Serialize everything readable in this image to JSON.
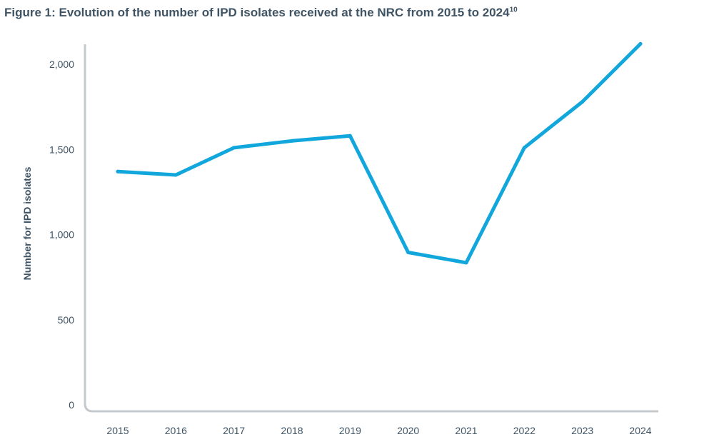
{
  "figure": {
    "title": "Figure 1: Evolution of the number of IPD isolates received at the NRC from 2015 to 2024",
    "title_sup": "10"
  },
  "colors": {
    "line": "#12a7dc",
    "axis": "#c4c9cd",
    "text": "#3f5465"
  },
  "chart_data": {
    "type": "line",
    "title": "Figure 1: Evolution of the number of IPD isolates received at the NRC from 2015 to 2024",
    "xlabel": "",
    "ylabel": "Number for IPD isolates",
    "categories": [
      "2015",
      "2016",
      "2017",
      "2018",
      "2019",
      "2020",
      "2021",
      "2022",
      "2023",
      "2024"
    ],
    "series": [
      {
        "values": [
          1370,
          1350,
          1510,
          1550,
          1580,
          895,
          835,
          1510,
          1780,
          2120
        ]
      }
    ],
    "yticks": [
      0,
      500,
      1000,
      1500,
      2000
    ],
    "ytick_labels": [
      "0",
      "500",
      "1,000",
      "1,500",
      "2,000"
    ],
    "ylim": [
      0,
      2150
    ],
    "grid": false,
    "legend": "none"
  }
}
